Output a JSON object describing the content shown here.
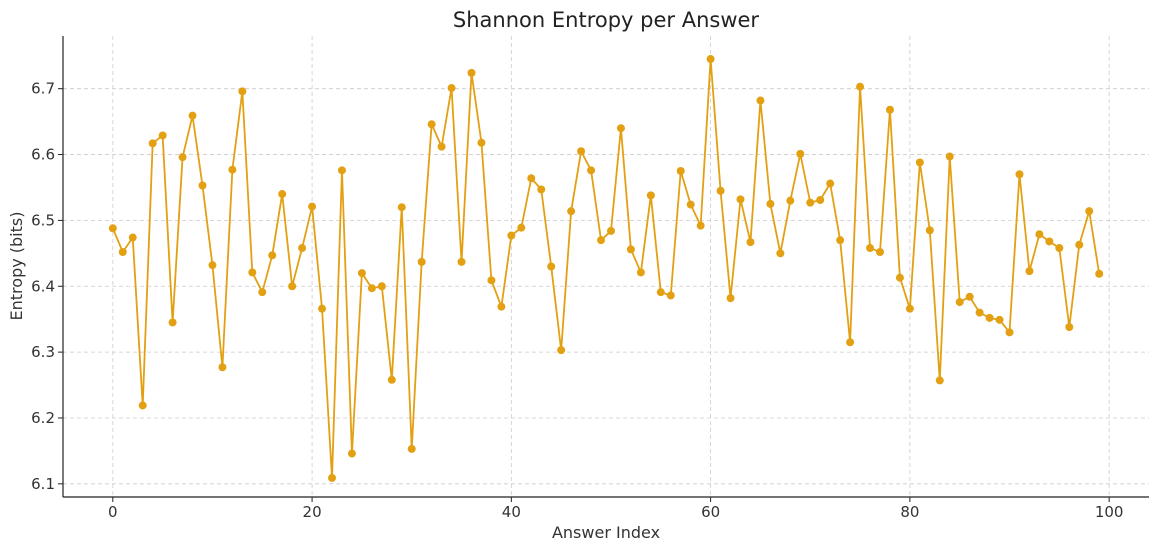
{
  "chart_data": {
    "type": "line",
    "title": "Shannon Entropy per Answer",
    "xlabel": "Answer Index",
    "ylabel": "Entropy (bits)",
    "xlim": [
      -5,
      104
    ],
    "ylim": [
      6.08,
      6.78
    ],
    "xticks": [
      0,
      20,
      40,
      60,
      80,
      100
    ],
    "yticks": [
      6.1,
      6.2,
      6.3,
      6.4,
      6.5,
      6.6,
      6.7
    ],
    "grid": true,
    "markers": true,
    "color": "#E3A012",
    "x": [
      0,
      1,
      2,
      3,
      4,
      5,
      6,
      7,
      8,
      9,
      10,
      11,
      12,
      13,
      14,
      15,
      16,
      17,
      18,
      19,
      20,
      21,
      22,
      23,
      24,
      25,
      26,
      27,
      28,
      29,
      30,
      31,
      32,
      33,
      34,
      35,
      36,
      37,
      38,
      39,
      40,
      41,
      42,
      43,
      44,
      45,
      46,
      47,
      48,
      49,
      50,
      51,
      52,
      53,
      54,
      55,
      56,
      57,
      58,
      59,
      60,
      61,
      62,
      63,
      64,
      65,
      66,
      67,
      68,
      69,
      70,
      71,
      72,
      73,
      74,
      75,
      76,
      77,
      78,
      79,
      80,
      81,
      82,
      83,
      84,
      85,
      86,
      87,
      88,
      89,
      90,
      91,
      92,
      93,
      94,
      95,
      96,
      97,
      98,
      99
    ],
    "y": [
      6.488,
      6.452,
      6.474,
      6.219,
      6.617,
      6.629,
      6.345,
      6.596,
      6.659,
      6.553,
      6.432,
      6.277,
      6.577,
      6.696,
      6.421,
      6.391,
      6.447,
      6.54,
      6.4,
      6.458,
      6.521,
      6.366,
      6.109,
      6.576,
      6.146,
      6.42,
      6.397,
      6.4,
      6.258,
      6.52,
      6.153,
      6.437,
      6.646,
      6.612,
      6.701,
      6.437,
      6.724,
      6.618,
      6.409,
      6.369,
      6.477,
      6.489,
      6.564,
      6.547,
      6.43,
      6.303,
      6.514,
      6.605,
      6.576,
      6.47,
      6.484,
      6.64,
      6.456,
      6.421,
      6.538,
      6.391,
      6.386,
      6.575,
      6.524,
      6.492,
      6.745,
      6.545,
      6.382,
      6.532,
      6.467,
      6.682,
      6.525,
      6.45,
      6.53,
      6.601,
      6.527,
      6.531,
      6.556,
      6.47,
      6.315,
      6.703,
      6.458,
      6.452,
      6.668,
      6.413,
      6.366,
      6.588,
      6.485,
      6.257,
      6.597,
      6.376,
      6.384,
      6.36,
      6.352,
      6.349,
      6.33,
      6.57,
      6.423,
      6.479,
      6.468,
      6.458,
      6.338,
      6.463,
      6.514,
      6.419
    ]
  }
}
